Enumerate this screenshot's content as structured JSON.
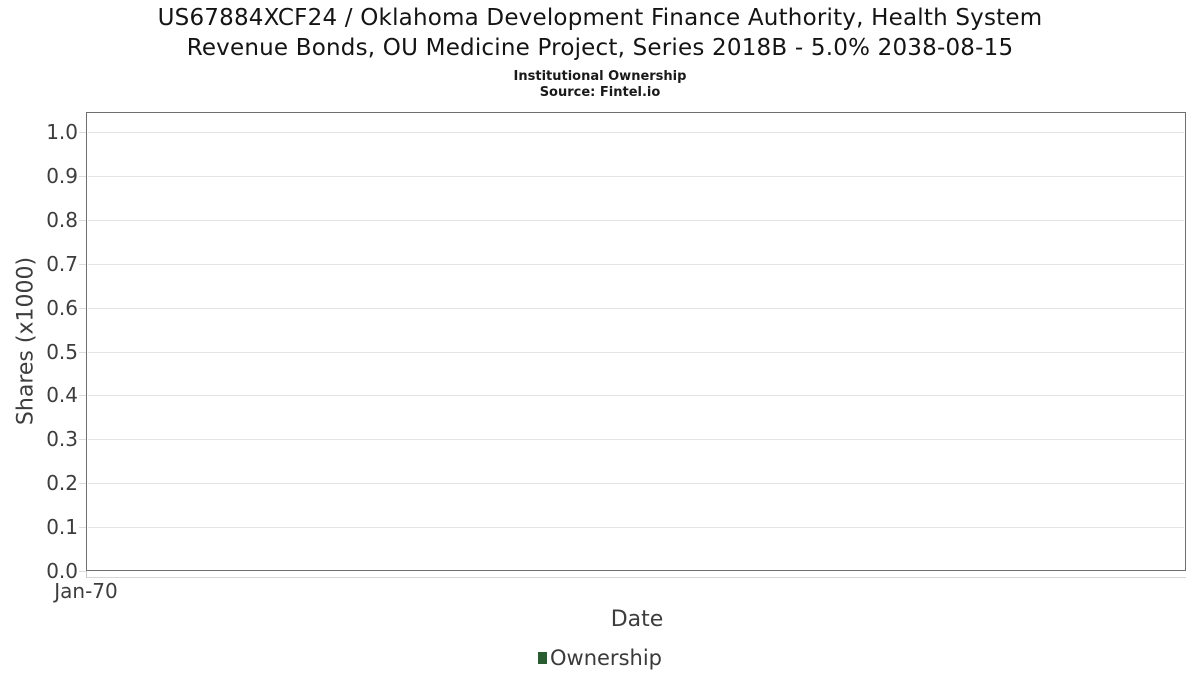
{
  "chart_data": {
    "type": "line",
    "title": "US67884XCF24 / Oklahoma Development Finance Authority, Health System Revenue Bonds, OU Medicine Project, Series 2018B - 5.0% 2038-08-15",
    "title_lines": [
      "US67884XCF24 / Oklahoma Development Finance Authority, Health System",
      "Revenue Bonds, OU Medicine Project, Series 2018B - 5.0% 2038-08-15"
    ],
    "subtitle": "Institutional Ownership",
    "source_label": "Source: Fintel.io",
    "xlabel": "Date",
    "ylabel": "Shares (x1000)",
    "x_ticks": [
      "Jan-70"
    ],
    "y_ticks": [
      "0.0",
      "0.1",
      "0.2",
      "0.3",
      "0.4",
      "0.5",
      "0.6",
      "0.7",
      "0.8",
      "0.9",
      "1.0"
    ],
    "ylim": [
      0.0,
      1.045
    ],
    "grid": "horizontal-only",
    "legend_position": "bottom-center",
    "series": [
      {
        "name": "Ownership",
        "color": "#295c30",
        "x": [],
        "values": []
      }
    ],
    "colors": {
      "axis_border": "#6f6f6f",
      "gridline": "#e4e4e4",
      "tick_text": "#3d3d3d",
      "title_text": "#141414"
    }
  }
}
